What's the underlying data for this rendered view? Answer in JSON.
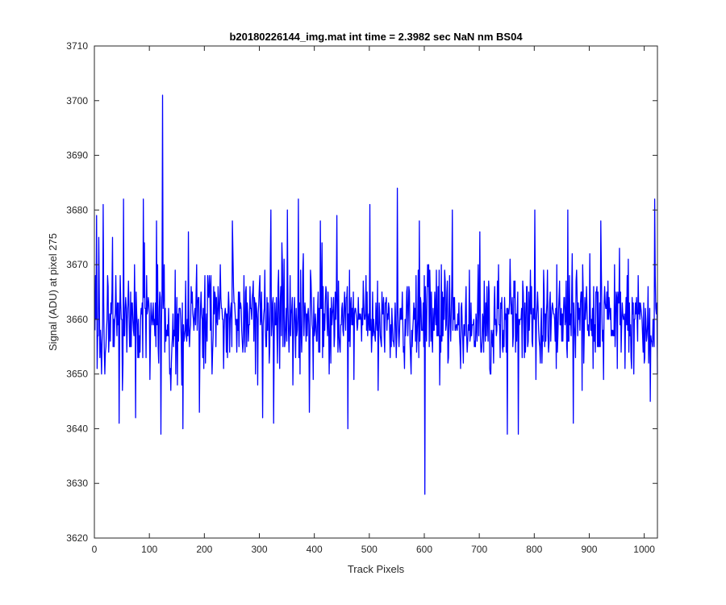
{
  "chart_data": {
    "type": "line",
    "title": "b20180226144_img.mat int time = 2.3982 sec  NaN nm BS04",
    "xlabel": "Track Pixels",
    "ylabel": "Signal (ADU) at pixel 275",
    "xlim": [
      0,
      1024
    ],
    "ylim": [
      3620,
      3710
    ],
    "xticks": [
      0,
      100,
      200,
      300,
      400,
      500,
      600,
      700,
      800,
      900,
      1000
    ],
    "yticks": [
      3620,
      3630,
      3640,
      3650,
      3660,
      3670,
      3680,
      3690,
      3700,
      3710
    ],
    "grid": false,
    "series": [
      {
        "color": "#0000ff",
        "noise": {
          "n": 1024,
          "mean": 3660,
          "half_range": 11,
          "seed": 20180226
        },
        "points": [
          [
            1,
            3668
          ],
          [
            3,
            3679
          ],
          [
            5,
            3657
          ],
          [
            7,
            3675
          ],
          [
            12,
            3650
          ],
          [
            15,
            3681
          ],
          [
            18,
            3650
          ],
          [
            24,
            3666
          ],
          [
            32,
            3675
          ],
          [
            38,
            3668
          ],
          [
            44,
            3641
          ],
          [
            48,
            3660
          ],
          [
            50,
            3647
          ],
          [
            52,
            3682
          ],
          [
            65,
            3665
          ],
          [
            74,
            3642
          ],
          [
            88,
            3682
          ],
          [
            100,
            3649
          ],
          [
            112,
            3678
          ],
          [
            120,
            3639
          ],
          [
            123,
            3701
          ],
          [
            126,
            3670
          ],
          [
            138,
            3647
          ],
          [
            150,
            3648
          ],
          [
            160,
            3640
          ],
          [
            170,
            3676
          ],
          [
            190,
            3643
          ],
          [
            200,
            3668
          ],
          [
            250,
            3678
          ],
          [
            300,
            3668
          ],
          [
            305,
            3642
          ],
          [
            320,
            3680
          ],
          [
            325,
            3641
          ],
          [
            340,
            3674
          ],
          [
            350,
            3680
          ],
          [
            360,
            3648
          ],
          [
            370,
            3682
          ],
          [
            390,
            3643
          ],
          [
            410,
            3678
          ],
          [
            440,
            3679
          ],
          [
            460,
            3640
          ],
          [
            480,
            3660
          ],
          [
            495,
            3665
          ],
          [
            500,
            3681
          ],
          [
            515,
            3647
          ],
          [
            550,
            3684
          ],
          [
            558,
            3660
          ],
          [
            575,
            3650
          ],
          [
            590,
            3678
          ],
          [
            600,
            3628
          ],
          [
            602,
            3660
          ],
          [
            630,
            3670
          ],
          [
            650,
            3680
          ],
          [
            670,
            3652
          ],
          [
            700,
            3676
          ],
          [
            720,
            3650
          ],
          [
            750,
            3639
          ],
          [
            770,
            3639
          ],
          [
            800,
            3680
          ],
          [
            810,
            3652
          ],
          [
            830,
            3660
          ],
          [
            840,
            3670
          ],
          [
            860,
            3680
          ],
          [
            870,
            3641
          ],
          [
            880,
            3660
          ],
          [
            900,
            3672
          ],
          [
            920,
            3678
          ],
          [
            945,
            3670
          ],
          [
            980,
            3650
          ],
          [
            1000,
            3653
          ],
          [
            1010,
            3645
          ],
          [
            1018,
            3682
          ],
          [
            1022,
            3663
          ],
          [
            1023,
            3650
          ]
        ]
      }
    ]
  }
}
